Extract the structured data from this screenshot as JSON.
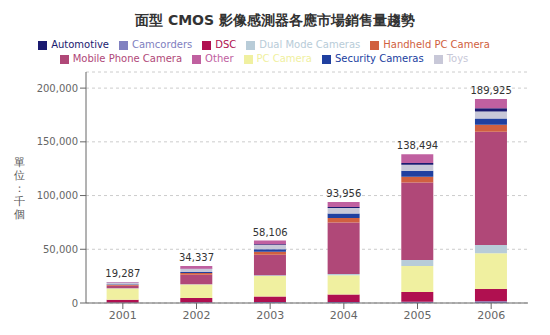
{
  "chart_data": {
    "type": "bar",
    "title": "面型 CMOS 影像感測器各應市場銷售量趨勢",
    "y_label": "單\n位\n：\n千\n個",
    "categories": [
      2001,
      2002,
      2003,
      2004,
      2005,
      2006
    ],
    "stacked": true,
    "grid": true,
    "legend": "top",
    "ylim": [
      0,
      215000
    ],
    "yticks": [
      0,
      {
        "value": 50000,
        "label": "50,000"
      },
      {
        "value": 100000,
        "label": "100,000"
      },
      {
        "value": 150000,
        "label": "150,000"
      },
      {
        "value": 200000,
        "label": "200,000"
      }
    ],
    "totals": [
      19287,
      34337,
      58106,
      93956,
      138494,
      189925
    ],
    "total_labels": [
      "19,287",
      "34,337",
      "58,106",
      "93,956",
      "138,494",
      "189,925"
    ],
    "series": [
      {
        "name": "Camcorders",
        "color": "#8080c0",
        "values": [
          482.175,
          671.9569,
          862.9604,
          939.56,
          1246.446,
          1709.325
        ]
      },
      {
        "name": "DSC",
        "color": "#b01050",
        "values": [
          2507.31,
          4031.7417,
          5177.7624,
          7046.7,
          9002.11,
          11395.5
        ]
      },
      {
        "name": "PC Camera",
        "color": "#f0f0a0",
        "values": [
          10607.85,
          12431.2035,
          18985.1287,
          17851.64,
          24236.45,
          33236.875
        ]
      },
      {
        "name": "Dual Mode Cameras",
        "color": "#b8ccd8",
        "values": [
          192.87,
          403.1742,
          862.9604,
          1127.472,
          5539.76,
          7597
        ]
      },
      {
        "name": "Mobile Phone Camera",
        "color": "#b04878",
        "values": [
          2314.44,
          8735.4403,
          18985.1287,
          47917.56,
          72016.88,
          105408.375
        ]
      },
      {
        "name": "Handheld PC Camera",
        "color": "#d06040",
        "values": [
          771.48,
          1679.8924,
          2876.5347,
          4228.02,
          5539.76,
          6647.375
        ]
      },
      {
        "name": "Security Cameras",
        "color": "#2040a0",
        "values": [
          578.61,
          1007.9354,
          2301.2277,
          4228.02,
          5539.76,
          5697.75
        ]
      },
      {
        "name": "Toys",
        "color": "#c8c8d8",
        "values": [
          1157.22,
          2687.8278,
          4027.1485,
          5167.58,
          5539.76,
          6647.375
        ]
      },
      {
        "name": "Automotive",
        "color": "#1a1a70",
        "values": [
          192.87,
          268.7828,
          575.3069,
          939.56,
          1661.928,
          2848.875
        ]
      },
      {
        "name": "Other",
        "color": "#c060a0",
        "values": [
          482.175,
          2419.045,
          3451.8416,
          4509.888,
          8171.146,
          8736.55
        ]
      }
    ]
  }
}
